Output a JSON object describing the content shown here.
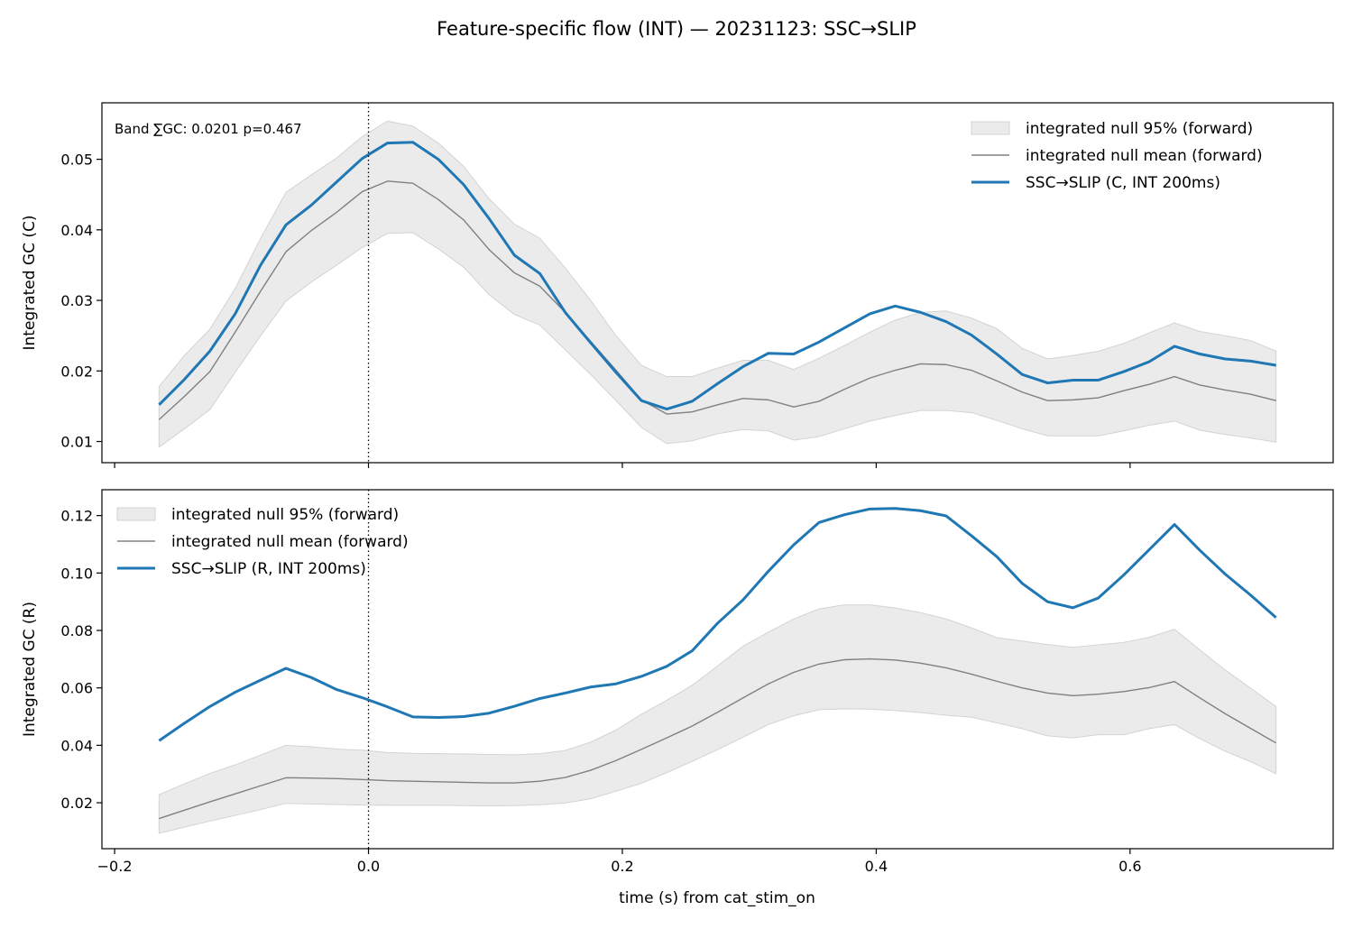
{
  "figure": {
    "title": "Feature-specific flow (INT) — 20231123: SSC→SLIP",
    "xlabel": "time (s) from cat_stim_on"
  },
  "colors": {
    "series": "#1f77b4",
    "null_mean": "#808080",
    "null_band": "#d3d3d3",
    "stim_line": "#000000"
  },
  "chart_data": [
    {
      "type": "line",
      "panel": "top",
      "ylabel": "Integrated GC (C)",
      "annotation": "Band ∑GC: 0.0201  p=0.467",
      "xlim": [
        -0.21,
        0.76
      ],
      "ylim": [
        0.007,
        0.058
      ],
      "xticks": [
        -0.2,
        0.0,
        0.2,
        0.4,
        0.6
      ],
      "xtick_labels_visible": false,
      "yticks": [
        0.01,
        0.02,
        0.03,
        0.04,
        0.05
      ],
      "ytick_labels": [
        "0.01",
        "0.02",
        "0.03",
        "0.04",
        "0.05"
      ],
      "legend_position": "upper right",
      "stim_line_x": 0.0,
      "x": [
        -0.165,
        -0.145,
        -0.125,
        -0.105,
        -0.085,
        -0.065,
        -0.045,
        -0.025,
        -0.005,
        0.015,
        0.035,
        0.055,
        0.075,
        0.095,
        0.115,
        0.135,
        0.155,
        0.175,
        0.195,
        0.215,
        0.235,
        0.255,
        0.275,
        0.295,
        0.315,
        0.335,
        0.355,
        0.375,
        0.395,
        0.415,
        0.435,
        0.455,
        0.475,
        0.495,
        0.515,
        0.535,
        0.555,
        0.575,
        0.595,
        0.615,
        0.635,
        0.655,
        0.675,
        0.695,
        0.715
      ],
      "band": {
        "name": "integrated null 95% (forward)",
        "upper": [
          0.0178,
          0.0222,
          0.0259,
          0.0317,
          0.0388,
          0.0453,
          0.0478,
          0.0502,
          0.0532,
          0.0554,
          0.0547,
          0.0523,
          0.049,
          0.0444,
          0.0408,
          0.0388,
          0.0346,
          0.03,
          0.025,
          0.0208,
          0.0192,
          0.0192,
          0.0204,
          0.0215,
          0.0215,
          0.0202,
          0.0218,
          0.0236,
          0.0255,
          0.0272,
          0.0283,
          0.0285,
          0.0275,
          0.026,
          0.0232,
          0.0217,
          0.0222,
          0.0228,
          0.0239,
          0.0254,
          0.0268,
          0.0256,
          0.025,
          0.0243,
          0.0228
        ],
        "lower": [
          0.0092,
          0.0118,
          0.0145,
          0.0198,
          0.025,
          0.0299,
          0.0326,
          0.035,
          0.0375,
          0.0395,
          0.0396,
          0.0373,
          0.0347,
          0.0308,
          0.028,
          0.0265,
          0.023,
          0.0195,
          0.0158,
          0.012,
          0.0097,
          0.0101,
          0.0111,
          0.0117,
          0.0115,
          0.0102,
          0.0107,
          0.0118,
          0.0129,
          0.0137,
          0.0144,
          0.0144,
          0.0141,
          0.013,
          0.0118,
          0.0108,
          0.0108,
          0.0108,
          0.0115,
          0.0123,
          0.0129,
          0.0116,
          0.011,
          0.0105,
          0.0099
        ]
      },
      "series": [
        {
          "name": "integrated null mean (forward)",
          "role": "null_mean",
          "values": [
            0.0131,
            0.0164,
            0.0199,
            0.0255,
            0.0313,
            0.0369,
            0.0399,
            0.0425,
            0.0454,
            0.0469,
            0.0466,
            0.0443,
            0.0414,
            0.0372,
            0.0339,
            0.032,
            0.0283,
            0.0242,
            0.0201,
            0.0159,
            0.0139,
            0.0142,
            0.0152,
            0.0161,
            0.0159,
            0.0149,
            0.0157,
            0.0174,
            0.019,
            0.0201,
            0.021,
            0.0209,
            0.0201,
            0.0186,
            0.017,
            0.0158,
            0.0159,
            0.0162,
            0.0172,
            0.0181,
            0.0192,
            0.018,
            0.0173,
            0.0167,
            0.0158
          ]
        },
        {
          "name": "SSC→SLIP (C, INT 200ms)",
          "role": "observed",
          "values": [
            0.0152,
            0.0188,
            0.0228,
            0.0281,
            0.035,
            0.0407,
            0.0435,
            0.0468,
            0.0501,
            0.0523,
            0.0524,
            0.05,
            0.0464,
            0.0416,
            0.0364,
            0.0338,
            0.0283,
            0.024,
            0.0198,
            0.0158,
            0.0146,
            0.0157,
            0.0182,
            0.0206,
            0.0225,
            0.0224,
            0.0241,
            0.0261,
            0.0281,
            0.0292,
            0.0283,
            0.027,
            0.0251,
            0.0224,
            0.0195,
            0.0183,
            0.0187,
            0.0187,
            0.0199,
            0.0213,
            0.0235,
            0.0224,
            0.0217,
            0.0214,
            0.0208
          ]
        }
      ]
    },
    {
      "type": "line",
      "panel": "bottom",
      "ylabel": "Integrated GC (R)",
      "xlim": [
        -0.21,
        0.76
      ],
      "ylim": [
        0.004,
        0.129
      ],
      "xticks": [
        -0.2,
        0.0,
        0.2,
        0.4,
        0.6
      ],
      "xtick_labels": [
        "−0.2",
        "0.0",
        "0.2",
        "0.4",
        "0.6"
      ],
      "yticks": [
        0.02,
        0.04,
        0.06,
        0.08,
        0.1,
        0.12
      ],
      "ytick_labels": [
        "0.02",
        "0.04",
        "0.06",
        "0.08",
        "0.10",
        "0.12"
      ],
      "legend_position": "upper left",
      "stim_line_x": 0.0,
      "x": [
        -0.165,
        -0.145,
        -0.125,
        -0.105,
        -0.085,
        -0.065,
        -0.045,
        -0.025,
        -0.005,
        0.015,
        0.035,
        0.055,
        0.075,
        0.095,
        0.115,
        0.135,
        0.155,
        0.175,
        0.195,
        0.215,
        0.235,
        0.255,
        0.275,
        0.295,
        0.315,
        0.335,
        0.355,
        0.375,
        0.395,
        0.415,
        0.435,
        0.455,
        0.475,
        0.495,
        0.515,
        0.535,
        0.555,
        0.575,
        0.595,
        0.615,
        0.635,
        0.655,
        0.675,
        0.695,
        0.715
      ],
      "band": {
        "name": "integrated null 95% (forward)",
        "upper": [
          0.0228,
          0.0266,
          0.0302,
          0.0332,
          0.0366,
          0.04,
          0.0395,
          0.0387,
          0.0383,
          0.0375,
          0.0372,
          0.0371,
          0.037,
          0.0368,
          0.0367,
          0.0371,
          0.0382,
          0.0411,
          0.0453,
          0.0508,
          0.0557,
          0.0609,
          0.0676,
          0.0745,
          0.0794,
          0.084,
          0.0875,
          0.0889,
          0.0889,
          0.0878,
          0.0862,
          0.084,
          0.0809,
          0.0775,
          0.0763,
          0.0751,
          0.0741,
          0.075,
          0.0758,
          0.0776,
          0.0804,
          0.0732,
          0.0662,
          0.0599,
          0.0535
        ],
        "lower": [
          0.0094,
          0.0115,
          0.0136,
          0.0156,
          0.0176,
          0.0198,
          0.0196,
          0.0194,
          0.0192,
          0.0191,
          0.0191,
          0.0191,
          0.019,
          0.0189,
          0.019,
          0.0193,
          0.0199,
          0.0214,
          0.024,
          0.0268,
          0.0305,
          0.0344,
          0.0385,
          0.0428,
          0.0472,
          0.0503,
          0.0524,
          0.0527,
          0.0526,
          0.0521,
          0.0514,
          0.0505,
          0.0498,
          0.0478,
          0.0458,
          0.0433,
          0.0426,
          0.0437,
          0.0437,
          0.0458,
          0.0472,
          0.0423,
          0.0379,
          0.0343,
          0.0301
        ]
      },
      "series": [
        {
          "name": "integrated null mean (forward)",
          "role": "null_mean",
          "values": [
            0.0145,
            0.0174,
            0.0203,
            0.0231,
            0.0259,
            0.0287,
            0.0286,
            0.0284,
            0.0281,
            0.0277,
            0.0275,
            0.0273,
            0.0271,
            0.0269,
            0.0269,
            0.0275,
            0.0288,
            0.0313,
            0.0347,
            0.0386,
            0.0426,
            0.0467,
            0.0515,
            0.0565,
            0.0614,
            0.0654,
            0.0683,
            0.0698,
            0.0701,
            0.0697,
            0.0686,
            0.067,
            0.0648,
            0.0623,
            0.06,
            0.0582,
            0.0573,
            0.0578,
            0.0587,
            0.0601,
            0.0622,
            0.0565,
            0.051,
            0.0459,
            0.0408
          ]
        },
        {
          "name": "SSC→SLIP (R, INT 200ms)",
          "role": "observed",
          "values": [
            0.0416,
            0.0477,
            0.0535,
            0.0585,
            0.0627,
            0.0668,
            0.0636,
            0.0594,
            0.0566,
            0.0534,
            0.0499,
            0.0497,
            0.05,
            0.0512,
            0.0536,
            0.0563,
            0.0582,
            0.0603,
            0.0614,
            0.064,
            0.0675,
            0.0729,
            0.0825,
            0.0906,
            0.1006,
            0.1098,
            0.1176,
            0.1203,
            0.1223,
            0.1225,
            0.1217,
            0.1199,
            0.113,
            0.1057,
            0.0964,
            0.09,
            0.0879,
            0.0913,
            0.0993,
            0.1081,
            0.1169,
            0.1079,
            0.0996,
            0.0923,
            0.0845
          ]
        }
      ]
    }
  ]
}
